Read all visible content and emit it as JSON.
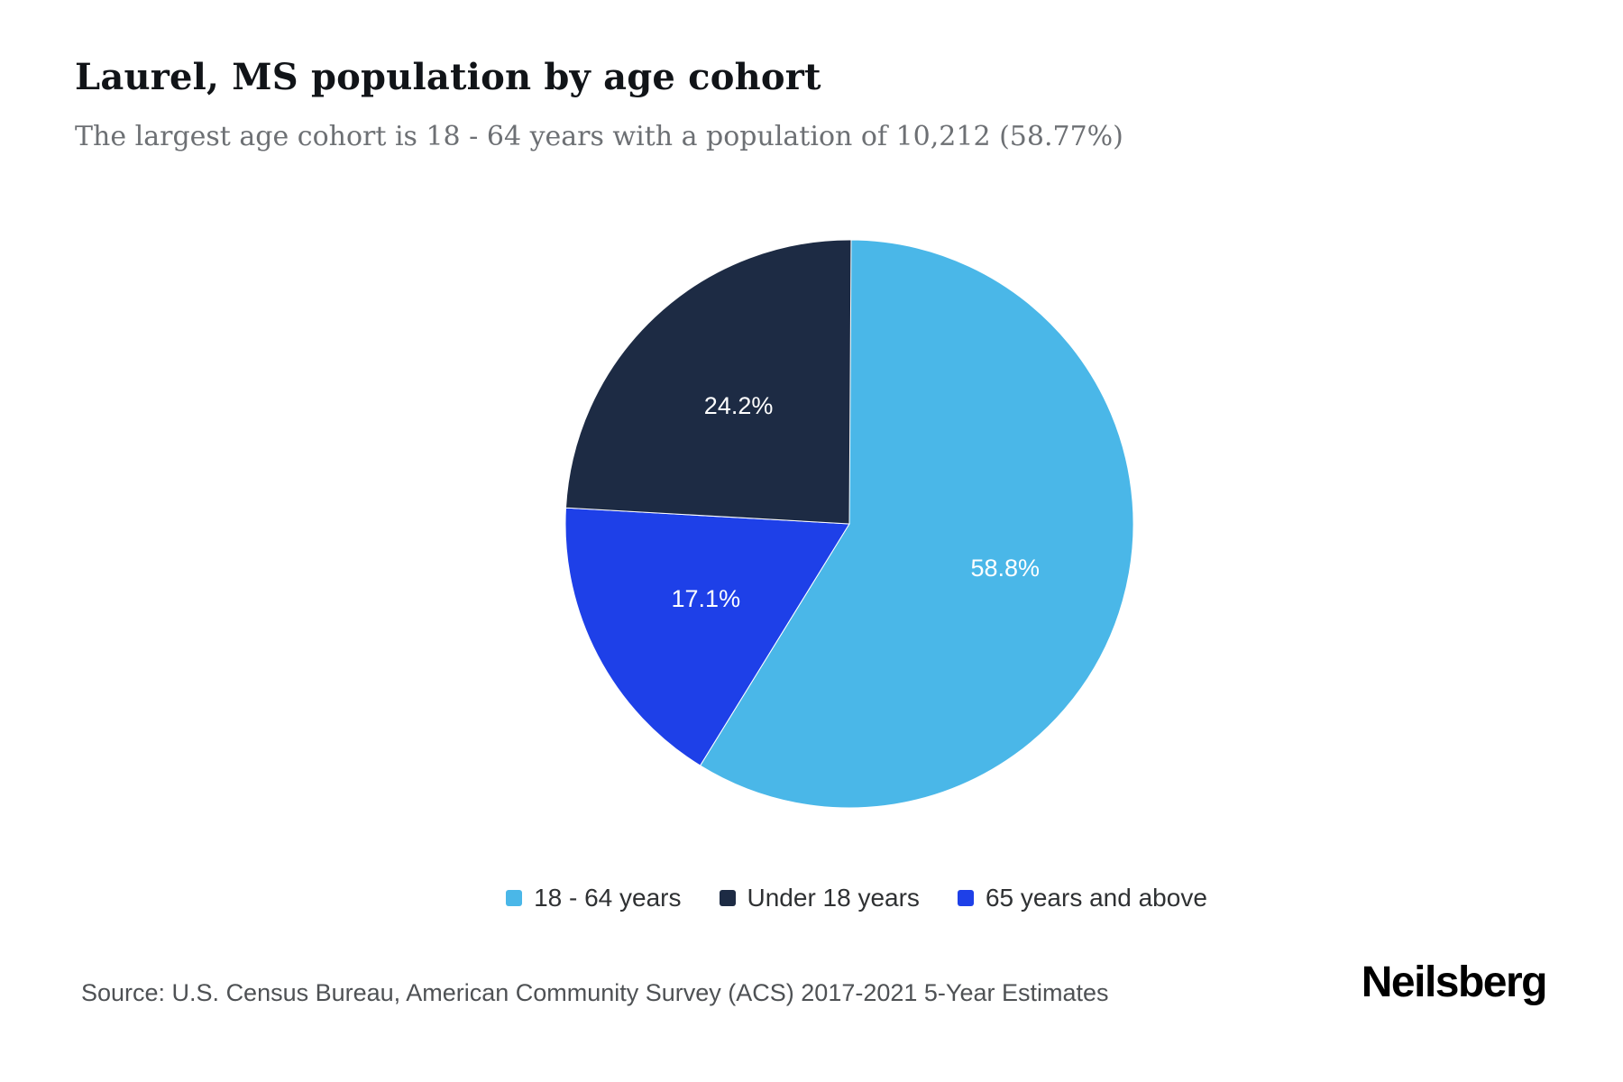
{
  "header": {
    "title": "Laurel, MS population by age cohort",
    "subtitle": "The largest age cohort is 18 - 64 years with a population of 10,212 (58.77%)"
  },
  "chart_data": {
    "type": "pie",
    "title": "Laurel, MS population by age cohort",
    "slices": [
      {
        "label": "18 - 64 years",
        "value": 58.8,
        "display": "58.8%",
        "population": "10,212",
        "color": "#4ab7e8"
      },
      {
        "label": "Under 18 years",
        "value": 24.2,
        "display": "24.2%",
        "color": "#1d2b44"
      },
      {
        "label": "65 years and above",
        "value": 17.1,
        "display": "17.1%",
        "color": "#1e40e8"
      }
    ],
    "draw_order": [
      0,
      2,
      1
    ],
    "start_angle_deg": 0,
    "direction": "clockwise",
    "labels_inside": true,
    "legend_position": "bottom"
  },
  "footer": {
    "source": "Source: U.S. Census Bureau, American Community Survey (ACS) 2017-2021 5-Year Estimates",
    "brand": "Neilsberg"
  }
}
